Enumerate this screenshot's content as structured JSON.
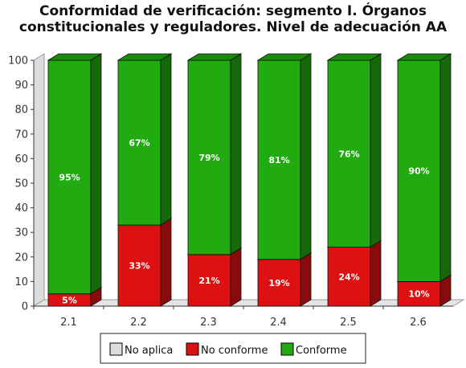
{
  "chart_data": {
    "type": "bar",
    "stacked": true,
    "three_d": true,
    "title": [
      "Conformidad de verificación: segmento I. Órganos",
      "constitucionales y reguladores. Nivel de adecuación AA"
    ],
    "categories": [
      "2.1",
      "2.2",
      "2.3",
      "2.4",
      "2.5",
      "2.6"
    ],
    "series": [
      {
        "name": "No aplica",
        "color": "#dddddd",
        "values": [
          0,
          0,
          0,
          0,
          0,
          0
        ],
        "labels": [
          "",
          "",
          "",
          "",
          "",
          ""
        ]
      },
      {
        "name": "No conforme",
        "color": "#dd1111",
        "values": [
          5,
          33,
          21,
          19,
          24,
          10
        ],
        "labels": [
          "5%",
          "33%",
          "21%",
          "19%",
          "24%",
          "10%"
        ]
      },
      {
        "name": "Conforme",
        "color": "#22aa11",
        "values": [
          95,
          67,
          79,
          81,
          76,
          90
        ],
        "labels": [
          "95%",
          "67%",
          "79%",
          "81%",
          "76%",
          "90%"
        ]
      }
    ],
    "ylim": [
      0,
      100
    ],
    "yticks": [
      "0",
      "10",
      "20",
      "30",
      "40",
      "50",
      "60",
      "70",
      "80",
      "90",
      "100"
    ],
    "xlabel": "",
    "ylabel": "",
    "legend_position": "bottom",
    "grid": false
  }
}
